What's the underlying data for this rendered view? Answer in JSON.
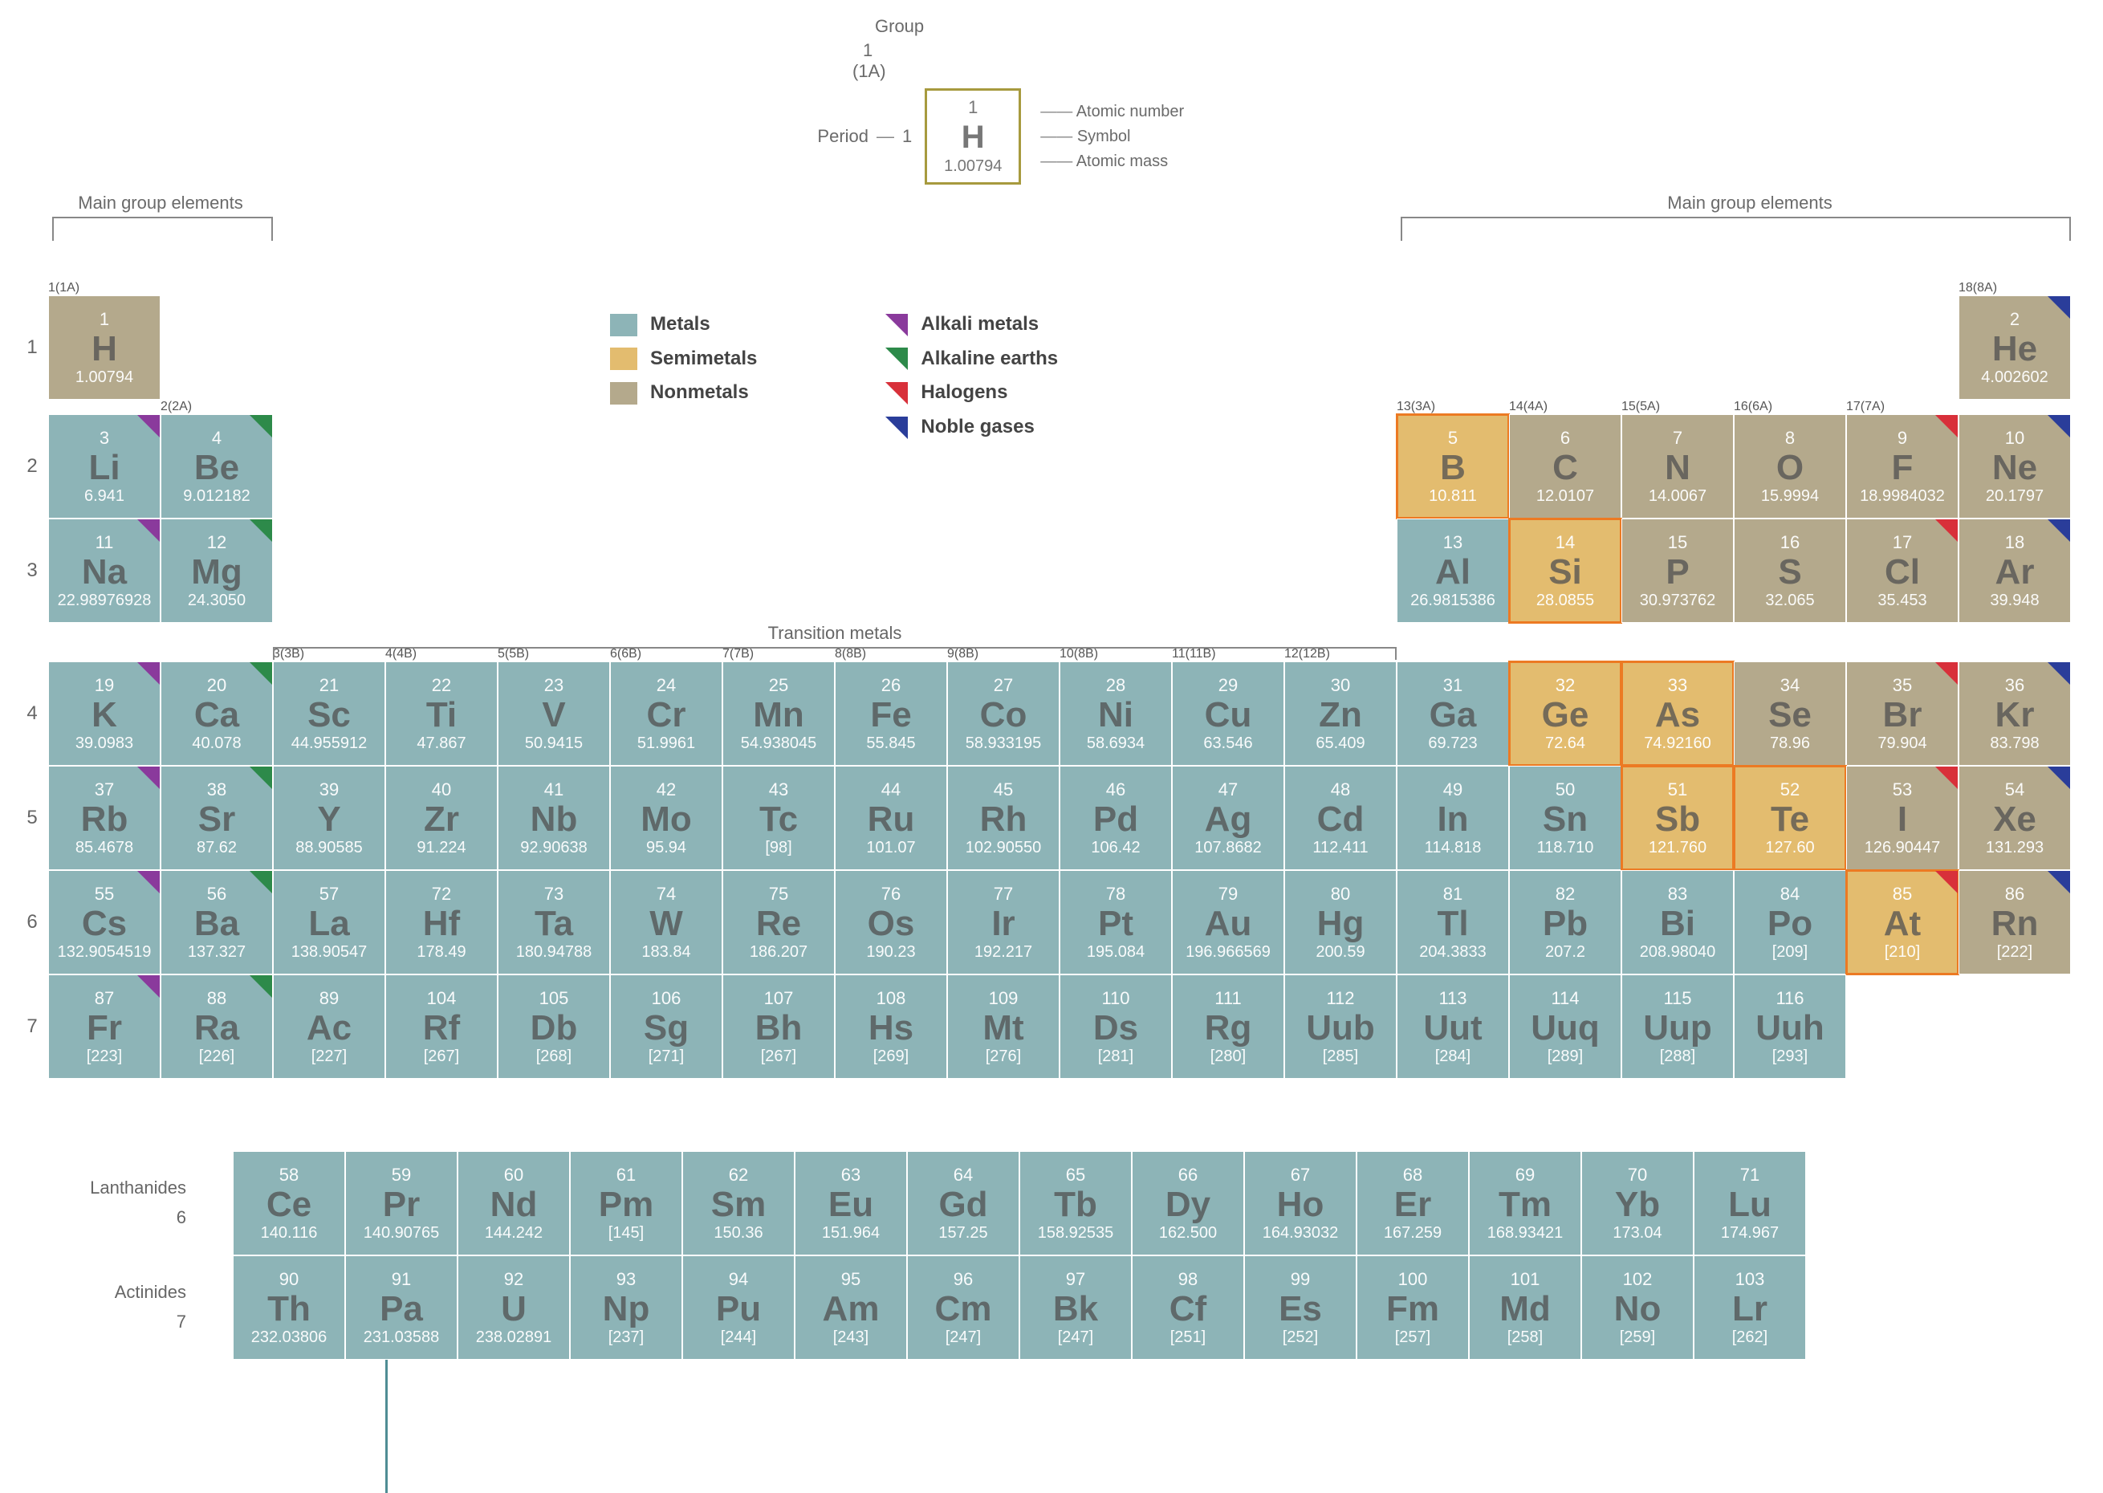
{
  "colors": {
    "metal": "#8db4b7",
    "semimetal": "#e3bc6f",
    "nonmetal": "#b4a98c",
    "alkali_tri": "#8a3a9c",
    "alkaline_tri": "#2d8a4a",
    "halogen_tri": "#d8303a",
    "noble_tri": "#2a3d9a",
    "key_border": "#a79a3e",
    "stair": "#ec7a23",
    "text_dim": "#6a6a6a"
  },
  "key": {
    "group_label": "Group",
    "group_num": "1",
    "group_paren": "(1A)",
    "period_label": "Period",
    "period_num": "1",
    "sample": {
      "n": "1",
      "sym": "H",
      "mass": "1.00794"
    },
    "leg": [
      "Atomic number",
      "Symbol",
      "Atomic mass"
    ]
  },
  "brackets": {
    "left": "Main group elements",
    "right": "Main group elements",
    "trans": "Transition metals"
  },
  "legend": {
    "cats": [
      [
        "Metals",
        "#8db4b7"
      ],
      [
        "Semimetals",
        "#e3bc6f"
      ],
      [
        "Nonmetals",
        "#b4a98c"
      ]
    ],
    "fams": [
      [
        "Alkali metals",
        "#8a3a9c"
      ],
      [
        "Alkaline earths",
        "#2d8a4a"
      ],
      [
        "Halogens",
        "#d8303a"
      ],
      [
        "Noble gases",
        "#2a3d9a"
      ]
    ]
  },
  "group_headers": [
    [
      "1",
      "(1A)"
    ],
    [
      "2",
      "(2A)"
    ],
    [
      "3",
      "(3B)"
    ],
    [
      "4",
      "(4B)"
    ],
    [
      "5",
      "(5B)"
    ],
    [
      "6",
      "(6B)"
    ],
    [
      "7",
      "(7B)"
    ],
    [
      "8",
      "(8B)"
    ],
    [
      "9",
      "(8B)"
    ],
    [
      "10",
      "(8B)"
    ],
    [
      "11",
      "(11B)"
    ],
    [
      "12",
      "(12B)"
    ],
    [
      "13",
      "(3A)"
    ],
    [
      "14",
      "(4A)"
    ],
    [
      "15",
      "(5A)"
    ],
    [
      "16",
      "(6A)"
    ],
    [
      "17",
      "(7A)"
    ],
    [
      "18",
      "(8A)"
    ]
  ],
  "header_rows": {
    "row1": [
      1,
      18
    ],
    "row2": [
      2
    ],
    "row3": [
      13,
      14,
      15,
      16,
      17
    ],
    "row4": [
      3,
      4,
      5,
      6,
      7,
      8,
      9,
      10,
      11,
      12
    ]
  },
  "periods": [
    1,
    2,
    3,
    4,
    5,
    6,
    7
  ],
  "elements": [
    {
      "p": 1,
      "g": 1,
      "n": "1",
      "s": "H",
      "m": "1.00794",
      "c": "nonmetal"
    },
    {
      "p": 1,
      "g": 18,
      "n": "2",
      "s": "He",
      "m": "4.002602",
      "c": "nonmetal",
      "t": "noble"
    },
    {
      "p": 2,
      "g": 1,
      "n": "3",
      "s": "Li",
      "m": "6.941",
      "c": "metal",
      "t": "alkali"
    },
    {
      "p": 2,
      "g": 2,
      "n": "4",
      "s": "Be",
      "m": "9.012182",
      "c": "metal",
      "t": "alkaline"
    },
    {
      "p": 2,
      "g": 13,
      "n": "5",
      "s": "B",
      "m": "10.811",
      "c": "semi",
      "st": 1
    },
    {
      "p": 2,
      "g": 14,
      "n": "6",
      "s": "C",
      "m": "12.0107",
      "c": "nonmetal"
    },
    {
      "p": 2,
      "g": 15,
      "n": "7",
      "s": "N",
      "m": "14.0067",
      "c": "nonmetal"
    },
    {
      "p": 2,
      "g": 16,
      "n": "8",
      "s": "O",
      "m": "15.9994",
      "c": "nonmetal"
    },
    {
      "p": 2,
      "g": 17,
      "n": "9",
      "s": "F",
      "m": "18.9984032",
      "c": "nonmetal",
      "t": "halogen"
    },
    {
      "p": 2,
      "g": 18,
      "n": "10",
      "s": "Ne",
      "m": "20.1797",
      "c": "nonmetal",
      "t": "noble"
    },
    {
      "p": 3,
      "g": 1,
      "n": "11",
      "s": "Na",
      "m": "22.98976928",
      "c": "metal",
      "t": "alkali"
    },
    {
      "p": 3,
      "g": 2,
      "n": "12",
      "s": "Mg",
      "m": "24.3050",
      "c": "metal",
      "t": "alkaline"
    },
    {
      "p": 3,
      "g": 13,
      "n": "13",
      "s": "Al",
      "m": "26.9815386",
      "c": "metal"
    },
    {
      "p": 3,
      "g": 14,
      "n": "14",
      "s": "Si",
      "m": "28.0855",
      "c": "semi",
      "st": 1
    },
    {
      "p": 3,
      "g": 15,
      "n": "15",
      "s": "P",
      "m": "30.973762",
      "c": "nonmetal"
    },
    {
      "p": 3,
      "g": 16,
      "n": "16",
      "s": "S",
      "m": "32.065",
      "c": "nonmetal"
    },
    {
      "p": 3,
      "g": 17,
      "n": "17",
      "s": "Cl",
      "m": "35.453",
      "c": "nonmetal",
      "t": "halogen"
    },
    {
      "p": 3,
      "g": 18,
      "n": "18",
      "s": "Ar",
      "m": "39.948",
      "c": "nonmetal",
      "t": "noble"
    },
    {
      "p": 4,
      "g": 1,
      "n": "19",
      "s": "K",
      "m": "39.0983",
      "c": "metal",
      "t": "alkali"
    },
    {
      "p": 4,
      "g": 2,
      "n": "20",
      "s": "Ca",
      "m": "40.078",
      "c": "metal",
      "t": "alkaline"
    },
    {
      "p": 4,
      "g": 3,
      "n": "21",
      "s": "Sc",
      "m": "44.955912",
      "c": "metal"
    },
    {
      "p": 4,
      "g": 4,
      "n": "22",
      "s": "Ti",
      "m": "47.867",
      "c": "metal"
    },
    {
      "p": 4,
      "g": 5,
      "n": "23",
      "s": "V",
      "m": "50.9415",
      "c": "metal"
    },
    {
      "p": 4,
      "g": 6,
      "n": "24",
      "s": "Cr",
      "m": "51.9961",
      "c": "metal"
    },
    {
      "p": 4,
      "g": 7,
      "n": "25",
      "s": "Mn",
      "m": "54.938045",
      "c": "metal"
    },
    {
      "p": 4,
      "g": 8,
      "n": "26",
      "s": "Fe",
      "m": "55.845",
      "c": "metal"
    },
    {
      "p": 4,
      "g": 9,
      "n": "27",
      "s": "Co",
      "m": "58.933195",
      "c": "metal"
    },
    {
      "p": 4,
      "g": 10,
      "n": "28",
      "s": "Ni",
      "m": "58.6934",
      "c": "metal"
    },
    {
      "p": 4,
      "g": 11,
      "n": "29",
      "s": "Cu",
      "m": "63.546",
      "c": "metal"
    },
    {
      "p": 4,
      "g": 12,
      "n": "30",
      "s": "Zn",
      "m": "65.409",
      "c": "metal"
    },
    {
      "p": 4,
      "g": 13,
      "n": "31",
      "s": "Ga",
      "m": "69.723",
      "c": "metal"
    },
    {
      "p": 4,
      "g": 14,
      "n": "32",
      "s": "Ge",
      "m": "72.64",
      "c": "semi",
      "st": 1
    },
    {
      "p": 4,
      "g": 15,
      "n": "33",
      "s": "As",
      "m": "74.92160",
      "c": "semi",
      "st": 1
    },
    {
      "p": 4,
      "g": 16,
      "n": "34",
      "s": "Se",
      "m": "78.96",
      "c": "nonmetal"
    },
    {
      "p": 4,
      "g": 17,
      "n": "35",
      "s": "Br",
      "m": "79.904",
      "c": "nonmetal",
      "t": "halogen"
    },
    {
      "p": 4,
      "g": 18,
      "n": "36",
      "s": "Kr",
      "m": "83.798",
      "c": "nonmetal",
      "t": "noble"
    },
    {
      "p": 5,
      "g": 1,
      "n": "37",
      "s": "Rb",
      "m": "85.4678",
      "c": "metal",
      "t": "alkali"
    },
    {
      "p": 5,
      "g": 2,
      "n": "38",
      "s": "Sr",
      "m": "87.62",
      "c": "metal",
      "t": "alkaline"
    },
    {
      "p": 5,
      "g": 3,
      "n": "39",
      "s": "Y",
      "m": "88.90585",
      "c": "metal"
    },
    {
      "p": 5,
      "g": 4,
      "n": "40",
      "s": "Zr",
      "m": "91.224",
      "c": "metal"
    },
    {
      "p": 5,
      "g": 5,
      "n": "41",
      "s": "Nb",
      "m": "92.90638",
      "c": "metal"
    },
    {
      "p": 5,
      "g": 6,
      "n": "42",
      "s": "Mo",
      "m": "95.94",
      "c": "metal"
    },
    {
      "p": 5,
      "g": 7,
      "n": "43",
      "s": "Tc",
      "m": "[98]",
      "c": "metal"
    },
    {
      "p": 5,
      "g": 8,
      "n": "44",
      "s": "Ru",
      "m": "101.07",
      "c": "metal"
    },
    {
      "p": 5,
      "g": 9,
      "n": "45",
      "s": "Rh",
      "m": "102.90550",
      "c": "metal"
    },
    {
      "p": 5,
      "g": 10,
      "n": "46",
      "s": "Pd",
      "m": "106.42",
      "c": "metal"
    },
    {
      "p": 5,
      "g": 11,
      "n": "47",
      "s": "Ag",
      "m": "107.8682",
      "c": "metal"
    },
    {
      "p": 5,
      "g": 12,
      "n": "48",
      "s": "Cd",
      "m": "112.411",
      "c": "metal"
    },
    {
      "p": 5,
      "g": 13,
      "n": "49",
      "s": "In",
      "m": "114.818",
      "c": "metal"
    },
    {
      "p": 5,
      "g": 14,
      "n": "50",
      "s": "Sn",
      "m": "118.710",
      "c": "metal"
    },
    {
      "p": 5,
      "g": 15,
      "n": "51",
      "s": "Sb",
      "m": "121.760",
      "c": "semi",
      "st": 1
    },
    {
      "p": 5,
      "g": 16,
      "n": "52",
      "s": "Te",
      "m": "127.60",
      "c": "semi",
      "st": 1
    },
    {
      "p": 5,
      "g": 17,
      "n": "53",
      "s": "I",
      "m": "126.90447",
      "c": "nonmetal",
      "t": "halogen"
    },
    {
      "p": 5,
      "g": 18,
      "n": "54",
      "s": "Xe",
      "m": "131.293",
      "c": "nonmetal",
      "t": "noble"
    },
    {
      "p": 6,
      "g": 1,
      "n": "55",
      "s": "Cs",
      "m": "132.9054519",
      "c": "metal",
      "t": "alkali"
    },
    {
      "p": 6,
      "g": 2,
      "n": "56",
      "s": "Ba",
      "m": "137.327",
      "c": "metal",
      "t": "alkaline"
    },
    {
      "p": 6,
      "g": 3,
      "n": "57",
      "s": "La",
      "m": "138.90547",
      "c": "metal"
    },
    {
      "p": 6,
      "g": 4,
      "n": "72",
      "s": "Hf",
      "m": "178.49",
      "c": "metal"
    },
    {
      "p": 6,
      "g": 5,
      "n": "73",
      "s": "Ta",
      "m": "180.94788",
      "c": "metal"
    },
    {
      "p": 6,
      "g": 6,
      "n": "74",
      "s": "W",
      "m": "183.84",
      "c": "metal"
    },
    {
      "p": 6,
      "g": 7,
      "n": "75",
      "s": "Re",
      "m": "186.207",
      "c": "metal"
    },
    {
      "p": 6,
      "g": 8,
      "n": "76",
      "s": "Os",
      "m": "190.23",
      "c": "metal"
    },
    {
      "p": 6,
      "g": 9,
      "n": "77",
      "s": "Ir",
      "m": "192.217",
      "c": "metal"
    },
    {
      "p": 6,
      "g": 10,
      "n": "78",
      "s": "Pt",
      "m": "195.084",
      "c": "metal"
    },
    {
      "p": 6,
      "g": 11,
      "n": "79",
      "s": "Au",
      "m": "196.966569",
      "c": "metal"
    },
    {
      "p": 6,
      "g": 12,
      "n": "80",
      "s": "Hg",
      "m": "200.59",
      "c": "metal"
    },
    {
      "p": 6,
      "g": 13,
      "n": "81",
      "s": "Tl",
      "m": "204.3833",
      "c": "metal"
    },
    {
      "p": 6,
      "g": 14,
      "n": "82",
      "s": "Pb",
      "m": "207.2",
      "c": "metal"
    },
    {
      "p": 6,
      "g": 15,
      "n": "83",
      "s": "Bi",
      "m": "208.98040",
      "c": "metal"
    },
    {
      "p": 6,
      "g": 16,
      "n": "84",
      "s": "Po",
      "m": "[209]",
      "c": "metal"
    },
    {
      "p": 6,
      "g": 17,
      "n": "85",
      "s": "At",
      "m": "[210]",
      "c": "semi",
      "t": "halogen",
      "st": 1
    },
    {
      "p": 6,
      "g": 18,
      "n": "86",
      "s": "Rn",
      "m": "[222]",
      "c": "nonmetal",
      "t": "noble"
    },
    {
      "p": 7,
      "g": 1,
      "n": "87",
      "s": "Fr",
      "m": "[223]",
      "c": "metal",
      "t": "alkali"
    },
    {
      "p": 7,
      "g": 2,
      "n": "88",
      "s": "Ra",
      "m": "[226]",
      "c": "metal",
      "t": "alkaline"
    },
    {
      "p": 7,
      "g": 3,
      "n": "89",
      "s": "Ac",
      "m": "[227]",
      "c": "metal"
    },
    {
      "p": 7,
      "g": 4,
      "n": "104",
      "s": "Rf",
      "m": "[267]",
      "c": "metal"
    },
    {
      "p": 7,
      "g": 5,
      "n": "105",
      "s": "Db",
      "m": "[268]",
      "c": "metal"
    },
    {
      "p": 7,
      "g": 6,
      "n": "106",
      "s": "Sg",
      "m": "[271]",
      "c": "metal"
    },
    {
      "p": 7,
      "g": 7,
      "n": "107",
      "s": "Bh",
      "m": "[267]",
      "c": "metal"
    },
    {
      "p": 7,
      "g": 8,
      "n": "108",
      "s": "Hs",
      "m": "[269]",
      "c": "metal"
    },
    {
      "p": 7,
      "g": 9,
      "n": "109",
      "s": "Mt",
      "m": "[276]",
      "c": "metal"
    },
    {
      "p": 7,
      "g": 10,
      "n": "110",
      "s": "Ds",
      "m": "[281]",
      "c": "metal"
    },
    {
      "p": 7,
      "g": 11,
      "n": "111",
      "s": "Rg",
      "m": "[280]",
      "c": "metal"
    },
    {
      "p": 7,
      "g": 12,
      "n": "112",
      "s": "Uub",
      "m": "[285]",
      "c": "metal"
    },
    {
      "p": 7,
      "g": 13,
      "n": "113",
      "s": "Uut",
      "m": "[284]",
      "c": "metal"
    },
    {
      "p": 7,
      "g": 14,
      "n": "114",
      "s": "Uuq",
      "m": "[289]",
      "c": "metal"
    },
    {
      "p": 7,
      "g": 15,
      "n": "115",
      "s": "Uup",
      "m": "[288]",
      "c": "metal"
    },
    {
      "p": 7,
      "g": 16,
      "n": "116",
      "s": "Uuh",
      "m": "[293]",
      "c": "metal"
    }
  ],
  "fblock": {
    "lanth_label": "Lanthanides",
    "lanth_period": "6",
    "act_label": "Actinides",
    "act_period": "7",
    "lanth": [
      {
        "n": "58",
        "s": "Ce",
        "m": "140.116"
      },
      {
        "n": "59",
        "s": "Pr",
        "m": "140.90765"
      },
      {
        "n": "60",
        "s": "Nd",
        "m": "144.242"
      },
      {
        "n": "61",
        "s": "Pm",
        "m": "[145]"
      },
      {
        "n": "62",
        "s": "Sm",
        "m": "150.36"
      },
      {
        "n": "63",
        "s": "Eu",
        "m": "151.964"
      },
      {
        "n": "64",
        "s": "Gd",
        "m": "157.25"
      },
      {
        "n": "65",
        "s": "Tb",
        "m": "158.92535"
      },
      {
        "n": "66",
        "s": "Dy",
        "m": "162.500"
      },
      {
        "n": "67",
        "s": "Ho",
        "m": "164.93032"
      },
      {
        "n": "68",
        "s": "Er",
        "m": "167.259"
      },
      {
        "n": "69",
        "s": "Tm",
        "m": "168.93421"
      },
      {
        "n": "70",
        "s": "Yb",
        "m": "173.04"
      },
      {
        "n": "71",
        "s": "Lu",
        "m": "174.967"
      }
    ],
    "act": [
      {
        "n": "90",
        "s": "Th",
        "m": "232.03806"
      },
      {
        "n": "91",
        "s": "Pa",
        "m": "231.03588"
      },
      {
        "n": "92",
        "s": "U",
        "m": "238.02891"
      },
      {
        "n": "93",
        "s": "Np",
        "m": "[237]"
      },
      {
        "n": "94",
        "s": "Pu",
        "m": "[244]"
      },
      {
        "n": "95",
        "s": "Am",
        "m": "[243]"
      },
      {
        "n": "96",
        "s": "Cm",
        "m": "[247]"
      },
      {
        "n": "97",
        "s": "Bk",
        "m": "[247]"
      },
      {
        "n": "98",
        "s": "Cf",
        "m": "[251]"
      },
      {
        "n": "99",
        "s": "Es",
        "m": "[252]"
      },
      {
        "n": "100",
        "s": "Fm",
        "m": "[257]"
      },
      {
        "n": "101",
        "s": "Md",
        "m": "[258]"
      },
      {
        "n": "102",
        "s": "No",
        "m": "[259]"
      },
      {
        "n": "103",
        "s": "Lr",
        "m": "[262]"
      }
    ]
  }
}
